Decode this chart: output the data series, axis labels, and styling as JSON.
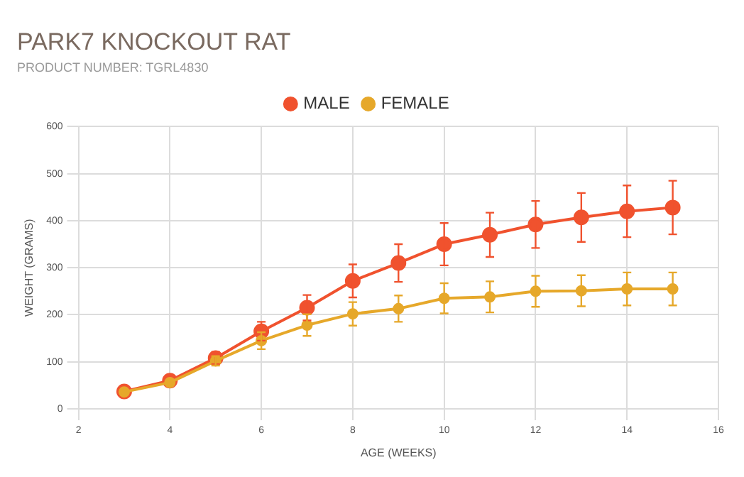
{
  "chart_data": {
    "type": "line",
    "title": "PARK7 KNOCKOUT RAT",
    "subtitle": "PRODUCT NUMBER: TGRL4830",
    "xlabel": "AGE (WEEKS)",
    "ylabel": "WEIGHT (GRAMS)",
    "x": [
      3,
      4,
      5,
      6,
      7,
      8,
      9,
      10,
      11,
      12,
      13,
      14,
      15
    ],
    "series": [
      {
        "name": "MALE",
        "color": "#f0522e",
        "values": [
          37,
          60,
          108,
          165,
          215,
          272,
          310,
          350,
          370,
          392,
          407,
          420,
          428
        ],
        "errors": [
          null,
          null,
          13,
          20,
          27,
          35,
          40,
          45,
          47,
          50,
          52,
          55,
          57
        ]
      },
      {
        "name": "FEMALE",
        "color": "#e6a82a",
        "values": [
          36,
          56,
          102,
          145,
          178,
          202,
          213,
          235,
          238,
          250,
          251,
          255,
          255
        ],
        "errors": [
          null,
          null,
          10,
          18,
          23,
          25,
          28,
          32,
          33,
          33,
          33,
          35,
          35
        ]
      }
    ],
    "xlim": [
      2,
      16
    ],
    "xticks": [
      2,
      4,
      6,
      8,
      10,
      12,
      14,
      16
    ],
    "ylim": [
      0,
      600
    ],
    "yticks": [
      0,
      100,
      200,
      300,
      400,
      500,
      600
    ],
    "grid": true,
    "legend": "top",
    "marker": "circle",
    "line_style": "solid"
  }
}
